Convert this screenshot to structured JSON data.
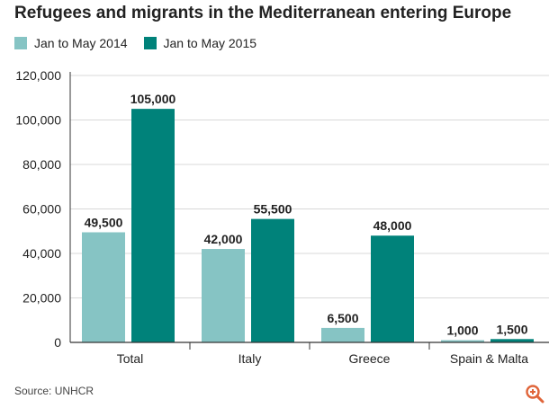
{
  "title": "Refugees and migrants in the Mediterranean entering Europe",
  "source": "Source: UNHCR",
  "zoom_icon": "zoom-in-icon",
  "colors": {
    "series_2014": "#86c4c4",
    "series_2015": "#00827a",
    "axis": "#333333",
    "grid": "#d8d8d8",
    "zoom": "#e0653a"
  },
  "chart_data": {
    "type": "bar",
    "categories": [
      "Total",
      "Italy",
      "Greece",
      "Spain & Malta"
    ],
    "series": [
      {
        "name": "Jan to May 2014",
        "values": [
          49500,
          42000,
          6500,
          1000
        ],
        "labels": [
          "49,500",
          "42,000",
          "6,500",
          "1,000"
        ]
      },
      {
        "name": "Jan to May 2015",
        "values": [
          105000,
          55500,
          48000,
          1500
        ],
        "labels": [
          "105,000",
          "55,500",
          "48,000",
          "1,500"
        ]
      }
    ],
    "ylim": [
      0,
      120000
    ],
    "yticks": [
      0,
      20000,
      40000,
      60000,
      80000,
      100000,
      120000
    ],
    "ytick_labels": [
      "0",
      "20,000",
      "40,000",
      "60,000",
      "80,000",
      "100,000",
      "120,000"
    ],
    "grid": true,
    "legend": "top-left"
  }
}
